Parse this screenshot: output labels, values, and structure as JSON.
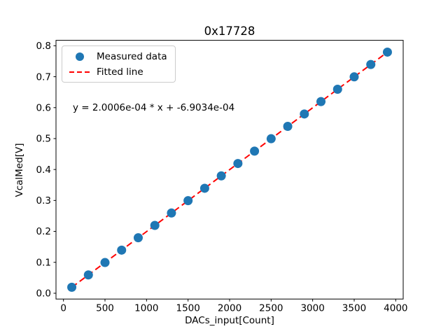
{
  "figure_title": "0x17728",
  "chart_data": {
    "type": "scatter",
    "title": "0x17728",
    "xlabel": "DACs_input[Count]",
    "ylabel": "VcalMed[V]",
    "annotation": "y = 2.0006e-04 * x + -6.9034e-04",
    "xlim": [
      -90,
      4090
    ],
    "ylim": [
      -0.0187,
      0.8176
    ],
    "grid": false,
    "x_ticks": [
      0,
      500,
      1000,
      1500,
      2000,
      2500,
      3000,
      3500,
      4000
    ],
    "x_tick_labels": [
      "0",
      "500",
      "1000",
      "1500",
      "2000",
      "2500",
      "3000",
      "3500",
      "4000"
    ],
    "y_ticks": [
      0.0,
      0.1,
      0.2,
      0.3,
      0.4,
      0.5,
      0.6,
      0.7,
      0.8
    ],
    "y_tick_labels": [
      "0.0",
      "0.1",
      "0.2",
      "0.3",
      "0.4",
      "0.5",
      "0.6",
      "0.7",
      "0.8"
    ],
    "fit": {
      "slope": 0.00020006,
      "intercept": -0.00069034
    },
    "legend": {
      "position": "upper left"
    },
    "series": [
      {
        "name": "Measured data",
        "plot": "scatter",
        "color": "#1f77b4",
        "marker": "circle",
        "x": [
          100,
          300,
          500,
          700,
          900,
          1100,
          1300,
          1500,
          1700,
          1900,
          2100,
          2300,
          2500,
          2700,
          2900,
          3100,
          3300,
          3500,
          3700,
          3900
        ],
        "y": [
          0.0193,
          0.0593,
          0.0993,
          0.1394,
          0.1794,
          0.2194,
          0.2594,
          0.2994,
          0.3394,
          0.3794,
          0.4194,
          0.4594,
          0.4995,
          0.5395,
          0.5795,
          0.6195,
          0.6595,
          0.6995,
          0.7395,
          0.7795
        ],
        "colors": {
          "marker": "#1f77b4"
        }
      },
      {
        "name": "Fitted line",
        "plot": "line",
        "style": "dashed",
        "color": "#ff0000",
        "x": [
          100,
          3900
        ],
        "y": [
          0.0193,
          0.7795
        ]
      }
    ]
  }
}
